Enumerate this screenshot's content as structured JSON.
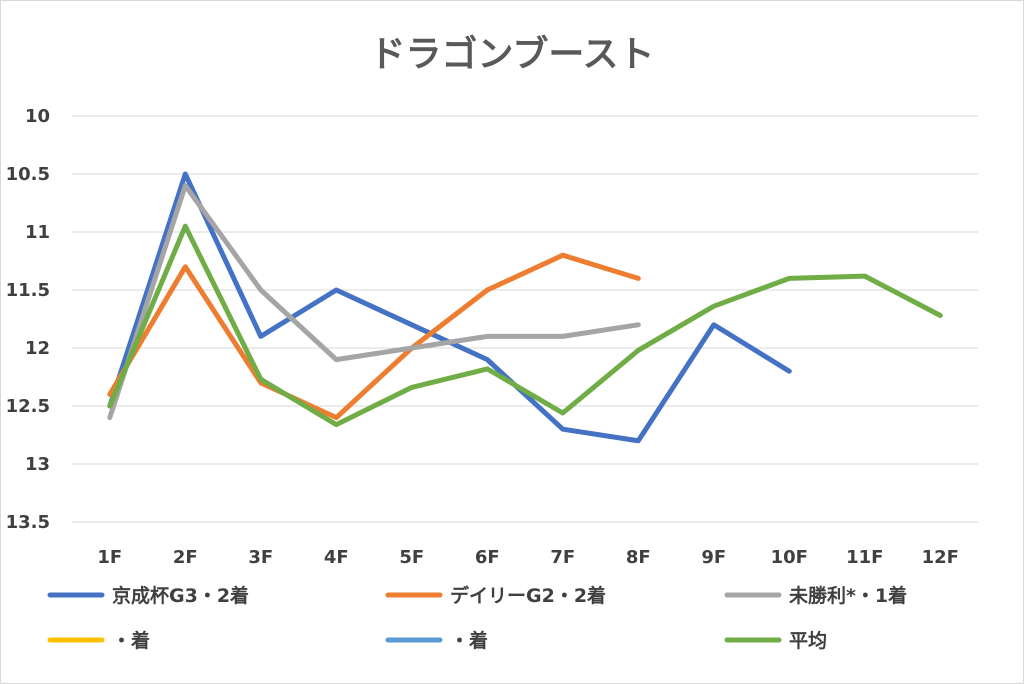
{
  "chart_data": {
    "type": "line",
    "title": "ドラゴンブースト",
    "xlabel": "",
    "ylabel": "",
    "y_axis_reversed": true,
    "ylim": [
      10,
      13.5
    ],
    "y_ticks": [
      "10",
      "10.5",
      "11",
      "11.5",
      "12",
      "12.5",
      "13",
      "13.5"
    ],
    "categories": [
      "1F",
      "2F",
      "3F",
      "4F",
      "5F",
      "6F",
      "7F",
      "8F",
      "9F",
      "10F",
      "11F",
      "12F"
    ],
    "grid": "horizontal",
    "legend_position": "bottom",
    "series": [
      {
        "name": "京成杯G3・2着",
        "color": "#4472c4",
        "values": [
          12.5,
          10.5,
          11.9,
          11.5,
          11.8,
          12.1,
          12.7,
          12.8,
          11.8,
          12.2,
          null,
          null
        ]
      },
      {
        "name": "デイリーG2・2着",
        "color": "#ed7d31",
        "values": [
          12.4,
          11.3,
          12.3,
          12.6,
          12.0,
          11.5,
          11.2,
          11.4,
          null,
          null,
          null,
          null
        ]
      },
      {
        "name": "未勝利*・1着",
        "color": "#a5a5a5",
        "values": [
          12.6,
          10.6,
          11.5,
          12.1,
          12.0,
          11.9,
          11.9,
          11.8,
          null,
          null,
          null,
          null
        ]
      },
      {
        "name": "・着",
        "color": "#ffc000",
        "values": [
          null,
          null,
          null,
          null,
          null,
          null,
          null,
          null,
          null,
          null,
          null,
          null
        ]
      },
      {
        "name": "・着",
        "color": "#5b9bd5",
        "values": [
          null,
          null,
          null,
          null,
          null,
          null,
          null,
          null,
          null,
          null,
          null,
          null
        ]
      },
      {
        "name": "平均",
        "color": "#70ad47",
        "values": [
          12.5,
          10.95,
          12.27,
          12.66,
          12.34,
          12.18,
          12.56,
          12.02,
          11.64,
          11.4,
          11.38,
          11.72
        ]
      }
    ]
  }
}
